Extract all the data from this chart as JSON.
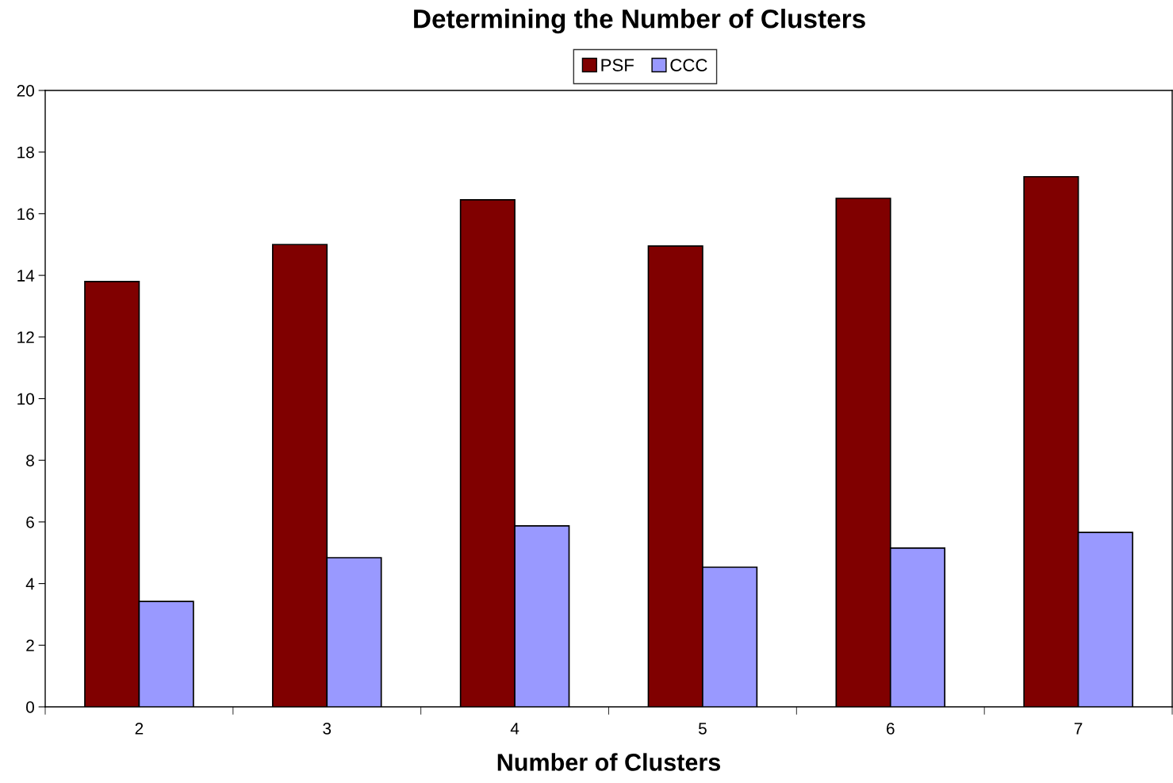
{
  "chart_data": {
    "type": "bar",
    "title": "Determining the Number of Clusters",
    "xlabel": "Number of Clusters",
    "categories": [
      "2",
      "3",
      "4",
      "5",
      "6",
      "7"
    ],
    "series": [
      {
        "name": "PSF",
        "color": "#800000",
        "values": [
          13.8,
          15.0,
          16.45,
          14.95,
          16.5,
          17.2
        ]
      },
      {
        "name": "CCC",
        "color": "#9999ff",
        "values": [
          3.42,
          4.84,
          5.87,
          4.53,
          5.15,
          5.66
        ]
      }
    ],
    "ylim": [
      0,
      20
    ],
    "yticks": [
      0,
      2,
      4,
      6,
      8,
      10,
      12,
      14,
      16,
      18,
      20
    ],
    "grid": false,
    "legend": "top"
  }
}
